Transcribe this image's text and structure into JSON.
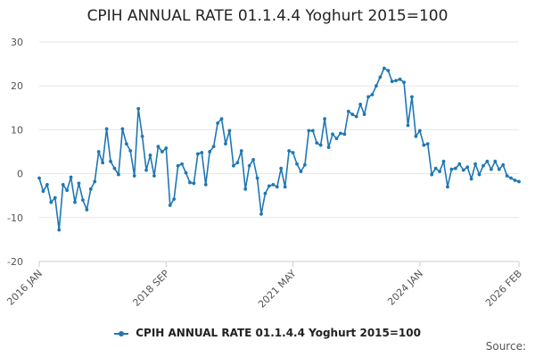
{
  "colors": {
    "series": "#1f77b4",
    "grid": "#e6e6e6",
    "axis": "#cccccc"
  },
  "chart_data": {
    "type": "line",
    "title": "CPIH ANNUAL RATE 01.1.4.4 Yoghurt 2015=100",
    "xlabel": "",
    "ylabel": "",
    "ylim": [
      -20,
      30
    ],
    "yticks": [
      -20,
      -10,
      0,
      10,
      20,
      30
    ],
    "xlim": [
      0,
      121
    ],
    "xticks": [
      {
        "index": 0,
        "label": "2016 JAN"
      },
      {
        "index": 32,
        "label": "2018 SEP"
      },
      {
        "index": 64,
        "label": "2021 MAY"
      },
      {
        "index": 96,
        "label": "2024 JAN"
      },
      {
        "index": 121,
        "label": "2026 FEB"
      }
    ],
    "grid": true,
    "legend": "bottom-center",
    "series": [
      {
        "name": "CPIH ANNUAL RATE 01.1.4.4 Yoghurt 2015=100",
        "values": [
          -1,
          -4,
          -2.5,
          -6.5,
          -5.5,
          -12.8,
          -2.5,
          -3.8,
          -0.8,
          -6.5,
          -2.2,
          -6,
          -8.2,
          -3.5,
          -1.8,
          5,
          2.5,
          10.2,
          2.8,
          1.2,
          -0.2,
          10.2,
          6.8,
          5.2,
          -0.5,
          14.8,
          8.5,
          0.8,
          4.2,
          -0.5,
          6.2,
          5,
          5.8,
          -7.2,
          -5.8,
          1.8,
          2.2,
          0.2,
          -2,
          -2.2,
          4.5,
          4.8,
          -2.5,
          5,
          6.2,
          11.5,
          12.5,
          6.8,
          9.8,
          1.8,
          2.5,
          5.2,
          -3.5,
          1.8,
          3.2,
          -1,
          -9.2,
          -4.5,
          -2.8,
          -2.5,
          -3,
          1.2,
          -3,
          5.2,
          4.8,
          2.2,
          0.5,
          2,
          9.8,
          9.8,
          7,
          6.5,
          12.5,
          6,
          9,
          8,
          9.2,
          9,
          14.2,
          13.5,
          13,
          15.8,
          13.5,
          17.5,
          18,
          20,
          22,
          24,
          23.5,
          21,
          21.2,
          21.5,
          20.8,
          11,
          17.5,
          8.5,
          9.8,
          6.5,
          6.8,
          -0.2,
          1.2,
          0.5,
          2.8,
          -3,
          1,
          1.2,
          2.2,
          0.8,
          1.5,
          -1.2,
          2.2,
          -0.2,
          1.8,
          2.8,
          1,
          2.8,
          1,
          2,
          -0.5,
          -1,
          -1.5,
          -1.8
        ]
      }
    ]
  },
  "legend": {
    "label": "CPIH ANNUAL RATE 01.1.4.4 Yoghurt 2015=100"
  },
  "footer": {
    "source_label": "Source:"
  }
}
